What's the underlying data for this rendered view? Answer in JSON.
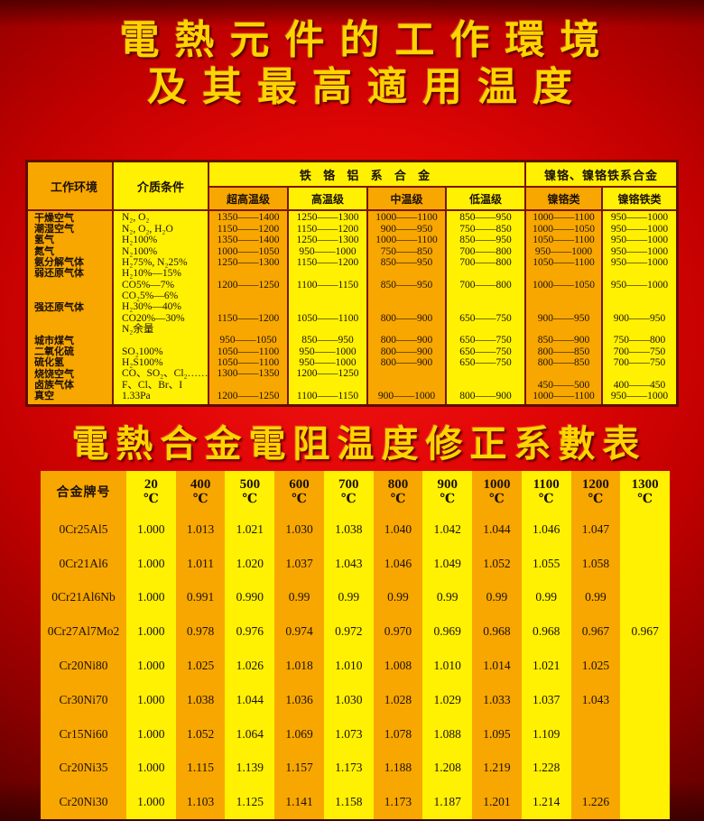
{
  "titles": {
    "line1": "電熱元件的工作環境",
    "line2": "及其最高適用温度",
    "second": "電熱合金電阻温度修正系數表"
  },
  "colors": {
    "background_red": "#e00505",
    "dark_red_border": "#7a1502",
    "stripe_orange": "#F8A700",
    "stripe_yellow": "#FFF101",
    "title_gold": "#ffd400",
    "table_text": "#1c1005"
  },
  "table1": {
    "header": {
      "env": "工作环境",
      "medium": "介质条件",
      "group_fecral": "铁 铬 铝 系 合 金",
      "group_nicr": "镍铬、镍铬铁系合金",
      "subs": [
        "超高温级",
        "高温级",
        "中温级",
        "低温级",
        "镍铬类",
        "镍铬铁类"
      ]
    },
    "lines": [
      {
        "env": "干燥空气",
        "medium": "N₂, O₂",
        "v": [
          "1350——1400",
          "1250——1300",
          "1000——1100",
          "850——950",
          "1000——1100",
          "950——1000"
        ]
      },
      {
        "env": "潮湿空气",
        "medium": "N₂, O₂, H₂O",
        "v": [
          "1150——1200",
          "1150——1200",
          "900——950",
          "750——850",
          "1000——1050",
          "950——1000"
        ]
      },
      {
        "env": "氢气",
        "medium": "H₂100%",
        "v": [
          "1350——1400",
          "1250——1300",
          "1000——1100",
          "850——950",
          "1050——1100",
          "950——1000"
        ]
      },
      {
        "env": "氮气",
        "medium": "N₂100%",
        "v": [
          "1000——1050",
          "950——1000",
          "750——850",
          "700——800",
          "950——1000",
          "950——1000"
        ]
      },
      {
        "env": "氨分解气体",
        "medium": "H₂75%, N₂25%",
        "v": [
          "1250——1300",
          "1150——1200",
          "850——950",
          "700——800",
          "1050——1100",
          "950——1000"
        ]
      },
      {
        "env": "弱还原气体",
        "medium": "H₂10%—15%",
        "v": [
          "",
          "",
          "",
          "",
          "",
          ""
        ]
      },
      {
        "env": "",
        "medium": "CO5%—7%",
        "v": [
          "1200——1250",
          "1100——1150",
          "850——950",
          "700——800",
          "1000——1050",
          "950——1000"
        ]
      },
      {
        "env": "",
        "medium": "CO₂5%—6%",
        "v": [
          "",
          "",
          "",
          "",
          "",
          ""
        ]
      },
      {
        "env": "强还原气体",
        "medium": "H₂30%—40%",
        "v": [
          "",
          "",
          "",
          "",
          "",
          ""
        ]
      },
      {
        "env": "",
        "medium": "CO20%—30%",
        "v": [
          "1150——1200",
          "1050——1100",
          "800——900",
          "650——750",
          "900——950",
          "900——950"
        ]
      },
      {
        "env": "",
        "medium": "N₂余量",
        "v": [
          "",
          "",
          "",
          "",
          "",
          ""
        ]
      },
      {
        "env": "城市煤气",
        "medium": "",
        "v": [
          "950——1050",
          "850——950",
          "800——900",
          "650——750",
          "850——900",
          "750——800"
        ]
      },
      {
        "env": "二氧化硫",
        "medium": "SO₂100%",
        "v": [
          "1050——1100",
          "950——1000",
          "800——900",
          "650——750",
          "800——850",
          "700——750"
        ]
      },
      {
        "env": "硫化氢",
        "medium": "H₂S100%",
        "v": [
          "1050——1100",
          "950——1000",
          "800——900",
          "650——750",
          "800——850",
          "700——750"
        ]
      },
      {
        "env": "烧饶空气",
        "medium": "CO、SO₂、Cl₂……",
        "v": [
          "1300——1350",
          "1200——1250",
          "",
          "",
          "",
          ""
        ]
      },
      {
        "env": "卤族气体",
        "medium": "F、Cl、Br、I",
        "v": [
          "",
          "",
          "",
          "",
          "450——500",
          "400——450"
        ]
      },
      {
        "env": "真空",
        "medium": "1.33Pa",
        "v": [
          "1200——1250",
          "1100——1150",
          "900——1000",
          "800——900",
          "1000——1100",
          "950——1000"
        ]
      }
    ]
  },
  "table2": {
    "corner": "合金牌号",
    "unit": "℃",
    "temps": [
      "20",
      "400",
      "500",
      "600",
      "700",
      "800",
      "900",
      "1000",
      "1100",
      "1200",
      "1300"
    ],
    "rows": [
      {
        "alloy": "0Cr25Al5",
        "values": [
          "1.000",
          "1.013",
          "1.021",
          "1.030",
          "1.038",
          "1.040",
          "1.042",
          "1.044",
          "1.046",
          "1.047",
          ""
        ]
      },
      {
        "alloy": "0Cr21Al6",
        "values": [
          "1.000",
          "1.011",
          "1.020",
          "1.037",
          "1.043",
          "1.046",
          "1.049",
          "1.052",
          "1.055",
          "1.058",
          ""
        ]
      },
      {
        "alloy": "0Cr21Al6Nb",
        "values": [
          "1.000",
          "0.991",
          "0.990",
          "0.99",
          "0.99",
          "0.99",
          "0.99",
          "0.99",
          "0.99",
          "0.99",
          ""
        ]
      },
      {
        "alloy": "0Cr27Al7Mo2",
        "values": [
          "1.000",
          "0.978",
          "0.976",
          "0.974",
          "0.972",
          "0.970",
          "0.969",
          "0.968",
          "0.968",
          "0.967",
          "0.967"
        ]
      },
      {
        "alloy": "Cr20Ni80",
        "values": [
          "1.000",
          "1.025",
          "1.026",
          "1.018",
          "1.010",
          "1.008",
          "1.010",
          "1.014",
          "1.021",
          "1.025",
          ""
        ]
      },
      {
        "alloy": "Cr30Ni70",
        "values": [
          "1.000",
          "1.038",
          "1.044",
          "1.036",
          "1.030",
          "1.028",
          "1.029",
          "1.033",
          "1.037",
          "1.043",
          ""
        ]
      },
      {
        "alloy": "Cr15Ni60",
        "values": [
          "1.000",
          "1.052",
          "1.064",
          "1.069",
          "1.073",
          "1.078",
          "1.088",
          "1.095",
          "1.109",
          "",
          ""
        ]
      },
      {
        "alloy": "Cr20Ni35",
        "values": [
          "1.000",
          "1.115",
          "1.139",
          "1.157",
          "1.173",
          "1.188",
          "1.208",
          "1.219",
          "1.228",
          "",
          ""
        ]
      },
      {
        "alloy": "Cr20Ni30",
        "values": [
          "1.000",
          "1.103",
          "1.125",
          "1.141",
          "1.158",
          "1.173",
          "1.187",
          "1.201",
          "1.214",
          "1.226",
          ""
        ]
      }
    ]
  }
}
